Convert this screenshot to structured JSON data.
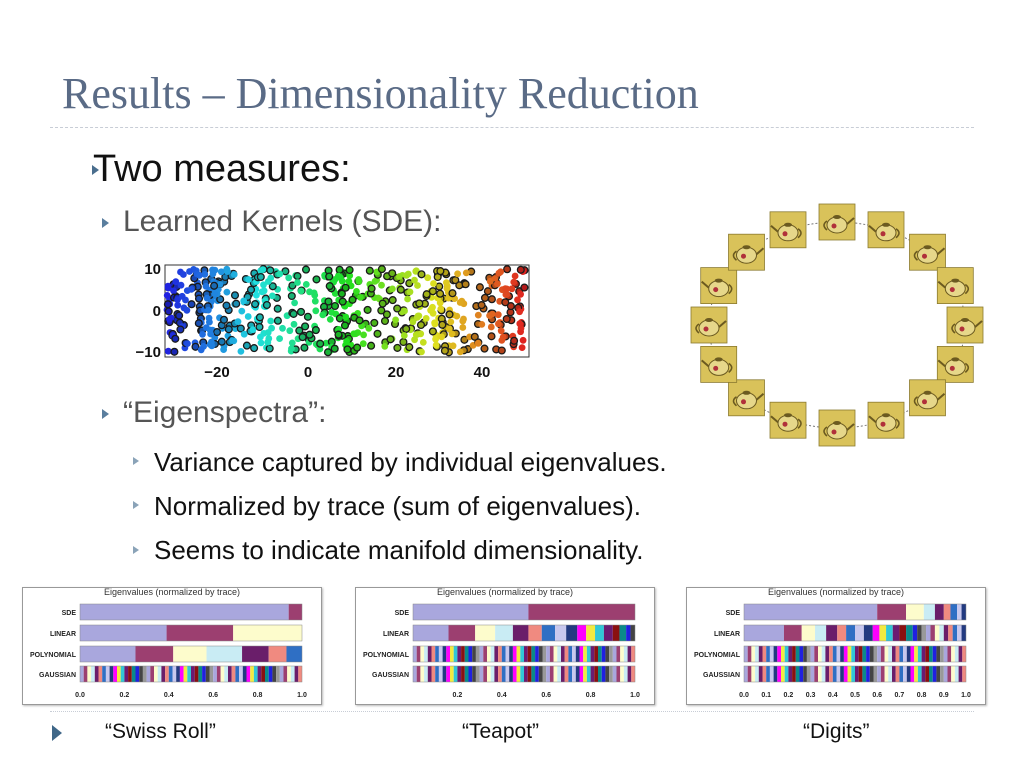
{
  "slide": {
    "title": "Results – Dimensionality Reduction",
    "bullet1": "Two measures:",
    "bullet1a": "Learned Kernels (SDE):",
    "bullet1b": "“Eigenspectra”:",
    "sub": [
      "Variance captured by individual eigenvalues.",
      "Normalized by trace (sum of eigenvalues).",
      "Seems to indicate manifold dimensionality."
    ],
    "captions": [
      "“Swiss Roll”",
      "“Teapot”",
      "“Digits”"
    ]
  },
  "scatter": {
    "yticks": [
      "10",
      "0",
      "−10"
    ],
    "xticks": [
      "−20",
      "0",
      "20",
      "40"
    ]
  },
  "chart_data": [
    {
      "type": "bar",
      "title": "Eigenvalues (normalized by trace)",
      "categories": [
        "SDE",
        "LINEAR",
        "POLYNOMIAL",
        "GAUSSIAN"
      ],
      "xticks": [
        "0.0",
        "0.2",
        "0.4",
        "0.6",
        "0.8",
        "1.0"
      ],
      "xlim": [
        0,
        1
      ],
      "stacked": true,
      "rows": [
        [
          0.94,
          0.06
        ],
        [
          0.39,
          0.3,
          0.31
        ],
        [
          0.25,
          0.17,
          0.15,
          0.16,
          0.12,
          0.08,
          0.07
        ]
      ]
    },
    {
      "type": "bar",
      "title": "Eigenvalues (normalized by trace)",
      "categories": [
        "SDE",
        "LINEAR",
        "POLYNOMIAL",
        "GAUSSIAN"
      ],
      "xticks": [
        "0.2",
        "0.4",
        "0.6",
        "0.8",
        "1.0"
      ],
      "xlim": [
        0,
        1
      ],
      "stacked": true,
      "rows": [
        [
          0.52,
          0.48
        ],
        [
          0.16,
          0.12,
          0.09,
          0.08,
          0.07,
          0.06,
          0.06,
          0.05,
          0.05,
          0.04,
          0.04,
          0.04,
          0.04,
          0.03,
          0.03,
          0.02,
          0.02
        ]
      ]
    },
    {
      "type": "bar",
      "title": "Eigenvalues (normalized by trace)",
      "categories": [
        "SDE",
        "LINEAR",
        "POLYNOMIAL",
        "GAUSSIAN"
      ],
      "xticks": [
        "0.0",
        "0.1",
        "0.2",
        "0.3",
        "0.4",
        "0.5",
        "0.6",
        "0.7",
        "0.8",
        "0.9",
        "1.0"
      ],
      "xlim": [
        0,
        1
      ],
      "stacked": true,
      "rows": [
        [
          0.6,
          0.13,
          0.08,
          0.05,
          0.04,
          0.03,
          0.03,
          0.02,
          0.02
        ],
        [
          0.18,
          0.08,
          0.06,
          0.05,
          0.05,
          0.04,
          0.04,
          0.04,
          0.04,
          0.03,
          0.03,
          0.03,
          0.03,
          0.03,
          0.03,
          0.02,
          0.02,
          0.02,
          0.02,
          0.02,
          0.02,
          0.02,
          0.02,
          0.02,
          0.02,
          0.02,
          0.02
        ]
      ]
    }
  ],
  "colors": {
    "title": "#5a6b86",
    "bullet": "#4a6e8e",
    "palette": [
      "#a9a7dd",
      "#9c3f70",
      "#fdfccc",
      "#c9ecf4",
      "#6a1e6a",
      "#f08a80",
      "#2f6fc4",
      "#c8c8ee",
      "#223a80",
      "#ff00ff",
      "#f2ea40",
      "#31c7d6",
      "#6b1b72",
      "#8a1010",
      "#0a8a8a",
      "#2020e0",
      "#444444",
      "#999999"
    ]
  }
}
